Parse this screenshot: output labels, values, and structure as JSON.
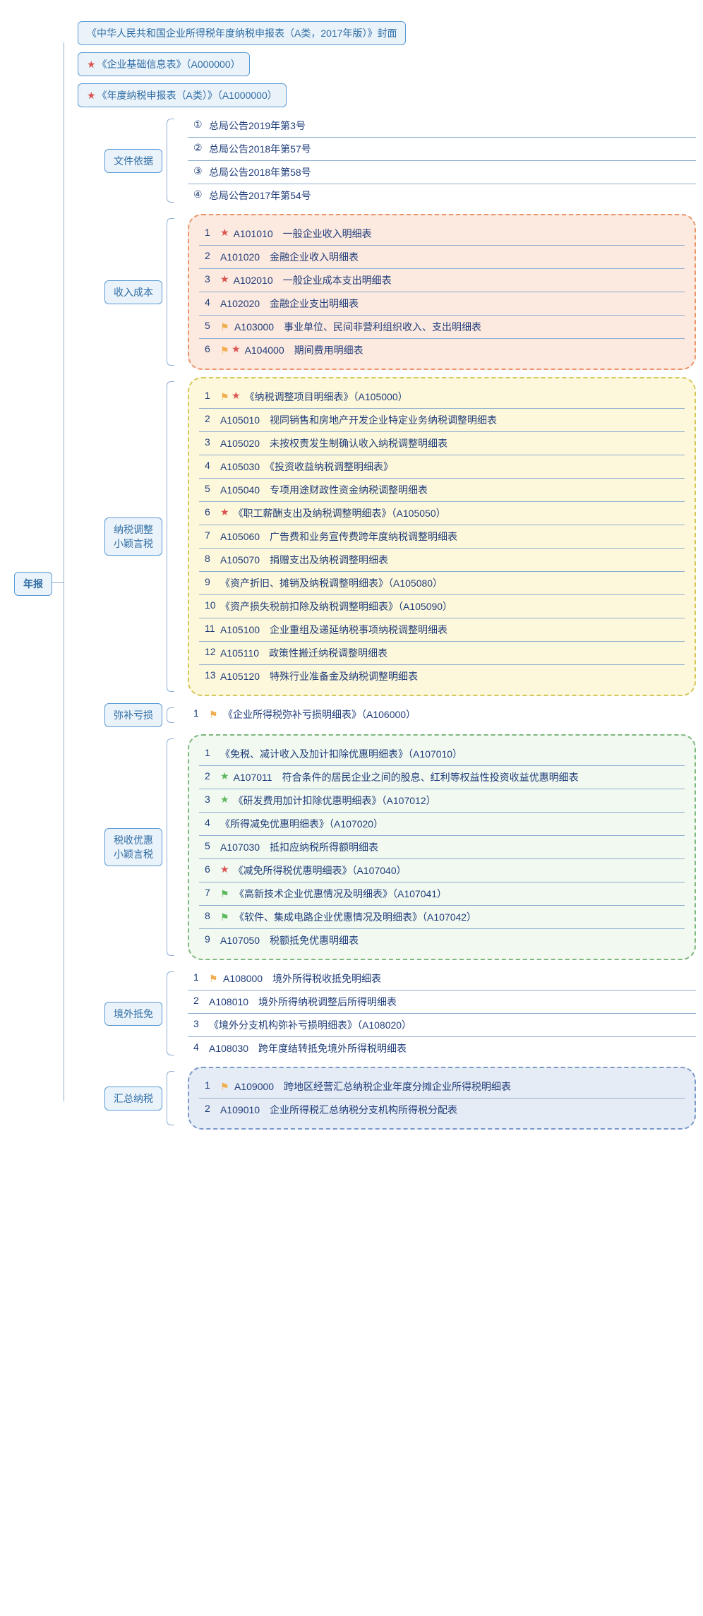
{
  "colors": {
    "box_bg": "#eaf2fa",
    "box_border": "#5b9bd5",
    "box_text": "#2e6da4",
    "link_text": "#1f3d7a",
    "connector": "#8faed0",
    "cloud_orange_bg": "#fce9df",
    "cloud_orange_border": "#e8956a",
    "cloud_yellow_bg": "#fdf8db",
    "cloud_yellow_border": "#d4c659",
    "cloud_green_bg": "#f1f9f1",
    "cloud_green_border": "#7fb77f",
    "cloud_blue_bg": "#e6ecf5",
    "cloud_blue_border": "#7a98c9",
    "star_red": "#d9534f",
    "star_green": "#5cb85c",
    "flag_orange": "#f0ad4e",
    "flag_green": "#5cb85c"
  },
  "root": {
    "label": "年报"
  },
  "top_items": [
    {
      "icons": [],
      "label": "《中华人民共和国企业所得税年度纳税申报表（A类，2017年版）》封面"
    },
    {
      "icons": [
        "star-red"
      ],
      "label": "《企业基础信息表》（A000000）"
    },
    {
      "icons": [
        "star-red"
      ],
      "label": "《年度纳税申报表（A类）》（A1000000）"
    }
  ],
  "sections": [
    {
      "key": "docs",
      "label": "文件依据",
      "style": "plain",
      "items": [
        {
          "num": "①",
          "icons": [],
          "text": "总局公告2019年第3号"
        },
        {
          "num": "②",
          "icons": [],
          "text": "总局公告2018年第57号"
        },
        {
          "num": "③",
          "icons": [],
          "text": "总局公告2018年第58号"
        },
        {
          "num": "④",
          "icons": [],
          "text": "总局公告2017年第54号"
        }
      ]
    },
    {
      "key": "income",
      "label": "收入成本",
      "style": "cloud-orange",
      "items": [
        {
          "num": "1",
          "icons": [
            "star-red"
          ],
          "text": "A101010　一般企业收入明细表"
        },
        {
          "num": "2",
          "icons": [],
          "text": "A101020　金融企业收入明细表"
        },
        {
          "num": "3",
          "icons": [
            "star-red"
          ],
          "text": "A102010　一般企业成本支出明细表"
        },
        {
          "num": "4",
          "icons": [],
          "text": "A102020　金融企业支出明细表"
        },
        {
          "num": "5",
          "icons": [
            "flag-orange"
          ],
          "text": "A103000　事业单位、民间非营利组织收入、支出明细表"
        },
        {
          "num": "6",
          "icons": [
            "flag-orange",
            "star-red"
          ],
          "text": "A104000　期间费用明细表"
        }
      ]
    },
    {
      "key": "adjust",
      "label": "纳税调整\n小颖言税",
      "style": "cloud-yellow",
      "items": [
        {
          "num": "1",
          "icons": [
            "flag-orange",
            "star-red"
          ],
          "text": "《纳税调整项目明细表》（A105000）"
        },
        {
          "num": "2",
          "icons": [],
          "text": "A105010　视同销售和房地产开发企业特定业务纳税调整明细表"
        },
        {
          "num": "3",
          "icons": [],
          "text": "A105020　未按权责发生制确认收入纳税调整明细表"
        },
        {
          "num": "4",
          "icons": [],
          "text": "A105030　《投资收益纳税调整明细表》"
        },
        {
          "num": "5",
          "icons": [],
          "text": "A105040　专项用途财政性资金纳税调整明细表"
        },
        {
          "num": "6",
          "icons": [
            "star-red"
          ],
          "text": "《职工薪酬支出及纳税调整明细表》（A105050）"
        },
        {
          "num": "7",
          "icons": [],
          "text": "A105060　广告费和业务宣传费跨年度纳税调整明细表"
        },
        {
          "num": "8",
          "icons": [],
          "text": "A105070　捐赠支出及纳税调整明细表"
        },
        {
          "num": "9",
          "icons": [],
          "text": "《资产折旧、摊销及纳税调整明细表》（A105080）"
        },
        {
          "num": "10",
          "icons": [],
          "text": "《资产损失税前扣除及纳税调整明细表》（A105090）"
        },
        {
          "num": "11",
          "icons": [],
          "text": "A105100　企业重组及递延纳税事项纳税调整明细表"
        },
        {
          "num": "12",
          "icons": [],
          "text": "A105110　政策性搬迁纳税调整明细表"
        },
        {
          "num": "13",
          "icons": [],
          "text": "A105120　特殊行业准备金及纳税调整明细表"
        }
      ]
    },
    {
      "key": "loss",
      "label": "弥补亏损",
      "style": "plain-single",
      "items": [
        {
          "num": "1",
          "icons": [
            "flag-orange"
          ],
          "text": "《企业所得税弥补亏损明细表》（A106000）"
        }
      ]
    },
    {
      "key": "preferential",
      "label": "税收优惠\n小颖言税",
      "style": "cloud-green",
      "items": [
        {
          "num": "1",
          "icons": [],
          "text": "《免税、减计收入及加计扣除优惠明细表》（A107010）"
        },
        {
          "num": "2",
          "icons": [
            "star-green"
          ],
          "text": "A107011　符合条件的居民企业之间的股息、红利等权益性投资收益优惠明细表"
        },
        {
          "num": "3",
          "icons": [
            "star-green"
          ],
          "text": "《研发费用加计扣除优惠明细表》（A107012）"
        },
        {
          "num": "4",
          "icons": [],
          "text": "《所得减免优惠明细表》（A107020）"
        },
        {
          "num": "5",
          "icons": [],
          "text": "A107030　抵扣应纳税所得额明细表"
        },
        {
          "num": "6",
          "icons": [
            "star-red"
          ],
          "text": "《减免所得税优惠明细表》（A107040）"
        },
        {
          "num": "7",
          "icons": [
            "flag-green"
          ],
          "text": "《高新技术企业优惠情况及明细表》（A107041）"
        },
        {
          "num": "8",
          "icons": [
            "flag-green"
          ],
          "text": "《软件、集成电路企业优惠情况及明细表》（A107042）"
        },
        {
          "num": "9",
          "icons": [],
          "text": "A107050　税额抵免优惠明细表"
        }
      ]
    },
    {
      "key": "overseas",
      "label": "境外抵免",
      "style": "plain",
      "items": [
        {
          "num": "1",
          "icons": [
            "flag-orange"
          ],
          "text": "A108000　境外所得税收抵免明细表"
        },
        {
          "num": "2",
          "icons": [],
          "text": "A108010　境外所得纳税调整后所得明细表"
        },
        {
          "num": "3",
          "icons": [],
          "text": "《境外分支机构弥补亏损明细表》（A108020）"
        },
        {
          "num": "4",
          "icons": [],
          "text": "A108030　跨年度结转抵免境外所得税明细表"
        }
      ]
    },
    {
      "key": "consolidated",
      "label": "汇总纳税",
      "style": "cloud-blue",
      "items": [
        {
          "num": "1",
          "icons": [
            "flag-orange"
          ],
          "text": "A109000　跨地区经营汇总纳税企业年度分摊企业所得税明细表"
        },
        {
          "num": "2",
          "icons": [],
          "text": "A109010　企业所得税汇总纳税分支机构所得税分配表"
        }
      ]
    }
  ]
}
